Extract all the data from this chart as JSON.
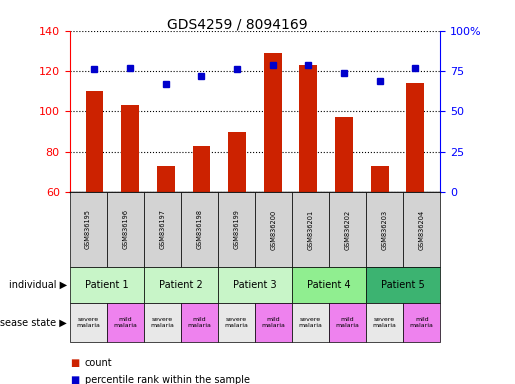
{
  "title": "GDS4259 / 8094169",
  "samples": [
    "GSM836195",
    "GSM836196",
    "GSM836197",
    "GSM836198",
    "GSM836199",
    "GSM836200",
    "GSM836201",
    "GSM836202",
    "GSM836203",
    "GSM836204"
  ],
  "counts": [
    110,
    103,
    73,
    83,
    90,
    129,
    123,
    97,
    73,
    114
  ],
  "percentile_ranks": [
    76,
    77,
    67,
    72,
    76,
    79,
    79,
    74,
    69,
    77
  ],
  "patients": [
    {
      "label": "Patient 1",
      "cols": [
        0,
        1
      ],
      "color": "#c8f5c8"
    },
    {
      "label": "Patient 2",
      "cols": [
        2,
        3
      ],
      "color": "#c8f5c8"
    },
    {
      "label": "Patient 3",
      "cols": [
        4,
        5
      ],
      "color": "#c8f5c8"
    },
    {
      "label": "Patient 4",
      "cols": [
        6,
        7
      ],
      "color": "#90ee90"
    },
    {
      "label": "Patient 5",
      "cols": [
        8,
        9
      ],
      "color": "#3cb371"
    }
  ],
  "disease_states": [
    {
      "label": "severe\nmalaria",
      "col": 0,
      "color": "#e8e8e8"
    },
    {
      "label": "mild\nmalaria",
      "col": 1,
      "color": "#ee82ee"
    },
    {
      "label": "severe\nmalaria",
      "col": 2,
      "color": "#e8e8e8"
    },
    {
      "label": "mild\nmalaria",
      "col": 3,
      "color": "#ee82ee"
    },
    {
      "label": "severe\nmalaria",
      "col": 4,
      "color": "#e8e8e8"
    },
    {
      "label": "mild\nmalaria",
      "col": 5,
      "color": "#ee82ee"
    },
    {
      "label": "severe\nmalaria",
      "col": 6,
      "color": "#e8e8e8"
    },
    {
      "label": "mild\nmalaria",
      "col": 7,
      "color": "#ee82ee"
    },
    {
      "label": "severe\nmalaria",
      "col": 8,
      "color": "#e8e8e8"
    },
    {
      "label": "mild\nmalaria",
      "col": 9,
      "color": "#ee82ee"
    }
  ],
  "ylim_left": [
    60,
    140
  ],
  "ylim_right": [
    0,
    100
  ],
  "yticks_left": [
    60,
    80,
    100,
    120,
    140
  ],
  "yticks_right": [
    0,
    25,
    50,
    75,
    100
  ],
  "yticklabels_right": [
    "0",
    "25",
    "50",
    "75",
    "100%"
  ],
  "bar_color": "#cc2200",
  "dot_color": "#0000cc",
  "grid_color": "#000000",
  "bg_color": "#ffffff",
  "sample_row_color": "#d3d3d3"
}
